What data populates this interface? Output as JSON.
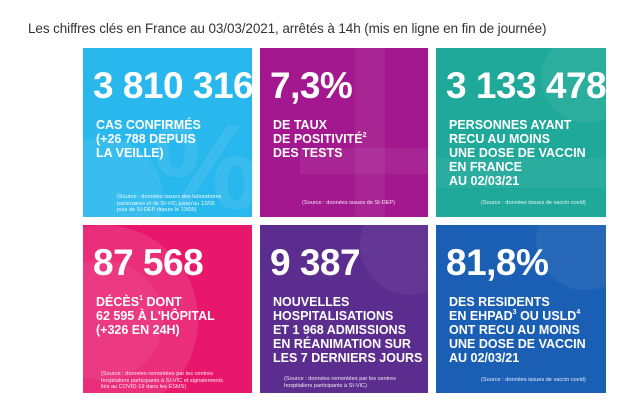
{
  "header": {
    "title": "Les chiffres clés en France au 03/03/2021, arrêtés à 14h (mis en ligne en fin de journée)"
  },
  "colors": {
    "cases": "#29b8ed",
    "positivity": "#a3188e",
    "vaccinated": "#1fa99a",
    "deaths": "#e8176b",
    "hospitalisations": "#5b2d8e",
    "ehpad": "#1b5fb5"
  },
  "tiles": {
    "cases": {
      "number": "3 810 316",
      "label_lines": [
        "CAS CONFIRMÉS",
        "(+26 788 DEPUIS",
        "LA VEILLE)"
      ],
      "source_lines": [
        "(Source : données issues des laboratoires",
        "partenaires et de SI-VIC jusqu'au 12/05",
        "puis de SI-DEP depuis le 13/05)"
      ]
    },
    "positivity": {
      "number": "7,3%",
      "label_lines": [
        "DE TAUX",
        "DE POSITIVITÉ",
        "DES TESTS"
      ],
      "label_sup": "2",
      "source_lines": [
        "(Source : données issues de SI-DEP)"
      ]
    },
    "vaccinated": {
      "number": "3 133 478",
      "label_lines": [
        "PERSONNES AYANT",
        "RECU AU MOINS",
        "UNE DOSE DE VACCIN",
        "EN FRANCE",
        "AU 02/03/21"
      ],
      "source_lines": [
        "(Source : données issues de vaccin covid)"
      ]
    },
    "deaths": {
      "number": "87 568",
      "label_lines": [
        "DÉCÈS",
        "62 595 À L'HÔPITAL",
        "(+326 EN 24H)"
      ],
      "label_sup": "1",
      "label_suffix": " DONT",
      "source_lines": [
        "(Source : données remontées par les centres",
        "hospitaliers participants à SI-VIC et signalements",
        "liés au COVID-19 dans les ESMS)"
      ]
    },
    "hospitalisations": {
      "number": "9 387",
      "label_lines": [
        "NOUVELLES",
        "HOSPITALISATIONS",
        "ET 1 968 ADMISSIONS",
        "EN RÉANIMATION SUR",
        "LES 7 DERNIERS JOURS"
      ],
      "source_lines": [
        "(Source : données remontées par les centres",
        "hospitaliers participants à SI-VIC)"
      ]
    },
    "ehpad": {
      "number": "81,8%",
      "label_lines": [
        "DES RESIDENTS",
        "EN EHPAD",
        "OU USLD",
        "ONT RECU AU MOINS",
        "UNE DOSE DE VACCIN",
        "AU 02/03/21"
      ],
      "sup_a": "3",
      "sup_b": "4",
      "source_lines": [
        "(Source : données issues de vaccin covid)"
      ]
    }
  }
}
